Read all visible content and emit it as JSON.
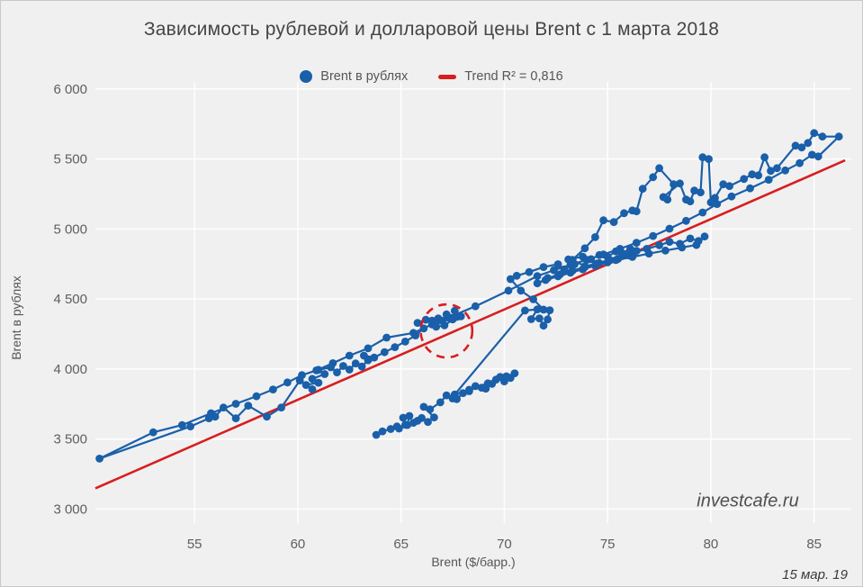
{
  "colors": {
    "series": "#1a5fa9",
    "trend": "#d81e1e",
    "annotation": "#d81e1e",
    "plot_bg": "#f0f0f1",
    "grid": "#ffffff",
    "tick_text": "#5e5e5e",
    "title_text": "#454545"
  },
  "watermark": "investcafe.ru",
  "date_label": "15 мар. 19",
  "chart_data": {
    "type": "scatter",
    "title": "Зависимость рублевой и долларовой цены Brent с 1 марта 2018",
    "xlabel": "Brent ($/барр.)",
    "ylabel": "Brent в рублях",
    "legend_position": "top-center",
    "grid": true,
    "xlim": [
      50.2,
      86.8
    ],
    "ylim": [
      2900,
      6050
    ],
    "x_ticks": [
      {
        "v": 55,
        "label": "55"
      },
      {
        "v": 60,
        "label": "60"
      },
      {
        "v": 65,
        "label": "65"
      },
      {
        "v": 70,
        "label": "70"
      },
      {
        "v": 75,
        "label": "75"
      },
      {
        "v": 80,
        "label": "80"
      },
      {
        "v": 85,
        "label": "85"
      }
    ],
    "y_ticks": [
      {
        "v": 3000,
        "label": "3 000"
      },
      {
        "v": 3500,
        "label": "3 500"
      },
      {
        "v": 4000,
        "label": "4 000"
      },
      {
        "v": 4500,
        "label": "4 500"
      },
      {
        "v": 5000,
        "label": "5 000"
      },
      {
        "v": 5500,
        "label": "5 500"
      },
      {
        "v": 6000,
        "label": "6 000"
      }
    ],
    "series": [
      {
        "name": "Brent в рублях",
        "connected": true,
        "points": [
          [
            63.8,
            3530
          ],
          [
            64.1,
            3555
          ],
          [
            64.5,
            3572
          ],
          [
            64.8,
            3590
          ],
          [
            64.9,
            3575
          ],
          [
            65.2,
            3602
          ],
          [
            65.1,
            3652
          ],
          [
            65.4,
            3665
          ],
          [
            65.3,
            3600
          ],
          [
            65.6,
            3616
          ],
          [
            65.8,
            3630
          ],
          [
            66.0,
            3650
          ],
          [
            66.3,
            3622
          ],
          [
            66.6,
            3655
          ],
          [
            66.1,
            3730
          ],
          [
            66.4,
            3712
          ],
          [
            66.9,
            3762
          ],
          [
            67.2,
            3812
          ],
          [
            67.5,
            3790
          ],
          [
            67.7,
            3785
          ],
          [
            68.0,
            3828
          ],
          [
            68.3,
            3842
          ],
          [
            68.6,
            3878
          ],
          [
            68.9,
            3866
          ],
          [
            69.1,
            3860
          ],
          [
            69.4,
            3894
          ],
          [
            69.6,
            3924
          ],
          [
            69.8,
            3944
          ],
          [
            70.0,
            3912
          ],
          [
            70.3,
            3936
          ],
          [
            70.5,
            3970
          ],
          [
            70.1,
            3948
          ],
          [
            69.2,
            3898
          ],
          [
            68.3,
            3852
          ],
          [
            67.6,
            3818
          ],
          [
            71.0,
            4418
          ],
          [
            71.6,
            4426
          ],
          [
            71.3,
            4356
          ],
          [
            71.7,
            4362
          ],
          [
            71.9,
            4310
          ],
          [
            72.1,
            4354
          ],
          [
            72.2,
            4420
          ],
          [
            71.9,
            4424
          ],
          [
            71.4,
            4498
          ],
          [
            70.8,
            4560
          ],
          [
            70.3,
            4642
          ],
          [
            70.6,
            4666
          ],
          [
            71.2,
            4692
          ],
          [
            71.9,
            4728
          ],
          [
            72.6,
            4748
          ],
          [
            72.9,
            4712
          ],
          [
            73.4,
            4748
          ],
          [
            73.1,
            4782
          ],
          [
            73.8,
            4802
          ],
          [
            74.2,
            4784
          ],
          [
            74.6,
            4814
          ],
          [
            75.0,
            4800
          ],
          [
            75.4,
            4840
          ],
          [
            75.7,
            4828
          ],
          [
            76.1,
            4858
          ],
          [
            76.4,
            4844
          ],
          [
            76.0,
            4812
          ],
          [
            75.5,
            4786
          ],
          [
            75.0,
            4762
          ],
          [
            74.4,
            4738
          ],
          [
            73.8,
            4712
          ],
          [
            73.2,
            4688
          ],
          [
            72.6,
            4662
          ],
          [
            72.0,
            4636
          ],
          [
            71.6,
            4612
          ],
          [
            72.1,
            4650
          ],
          [
            72.7,
            4676
          ],
          [
            73.3,
            4702
          ],
          [
            73.9,
            4728
          ],
          [
            74.5,
            4754
          ],
          [
            75.1,
            4780
          ],
          [
            75.7,
            4806
          ],
          [
            76.3,
            4832
          ],
          [
            76.9,
            4858
          ],
          [
            77.5,
            4884
          ],
          [
            78.0,
            4908
          ],
          [
            78.5,
            4894
          ],
          [
            79.0,
            4932
          ],
          [
            79.4,
            4914
          ],
          [
            79.7,
            4946
          ],
          [
            79.3,
            4886
          ],
          [
            78.6,
            4868
          ],
          [
            77.8,
            4846
          ],
          [
            77.0,
            4824
          ],
          [
            76.2,
            4800
          ],
          [
            75.4,
            4778
          ],
          [
            74.6,
            4756
          ],
          [
            73.9,
            4734
          ],
          [
            73.3,
            4780
          ],
          [
            73.9,
            4862
          ],
          [
            74.4,
            4942
          ],
          [
            74.8,
            5062
          ],
          [
            75.3,
            5050
          ],
          [
            75.8,
            5113
          ],
          [
            76.2,
            5132
          ],
          [
            76.4,
            5126
          ],
          [
            76.7,
            5287
          ],
          [
            77.2,
            5370
          ],
          [
            77.5,
            5434
          ],
          [
            78.2,
            5319
          ],
          [
            77.9,
            5210
          ],
          [
            77.7,
            5228
          ],
          [
            78.5,
            5325
          ],
          [
            78.8,
            5210
          ],
          [
            79.0,
            5197
          ],
          [
            79.2,
            5274
          ],
          [
            79.5,
            5261
          ],
          [
            79.6,
            5512
          ],
          [
            79.9,
            5499
          ],
          [
            80.0,
            5190
          ],
          [
            80.2,
            5222
          ],
          [
            80.6,
            5319
          ],
          [
            80.9,
            5306
          ],
          [
            81.6,
            5357
          ],
          [
            82.0,
            5390
          ],
          [
            82.3,
            5383
          ],
          [
            82.6,
            5512
          ],
          [
            82.9,
            5415
          ],
          [
            83.2,
            5434
          ],
          [
            84.1,
            5595
          ],
          [
            84.4,
            5582
          ],
          [
            84.7,
            5614
          ],
          [
            85.0,
            5685
          ],
          [
            85.4,
            5660
          ],
          [
            86.2,
            5660
          ],
          [
            85.2,
            5518
          ],
          [
            84.9,
            5530
          ],
          [
            84.3,
            5470
          ],
          [
            83.6,
            5418
          ],
          [
            82.8,
            5352
          ],
          [
            81.9,
            5290
          ],
          [
            81.0,
            5232
          ],
          [
            80.3,
            5178
          ],
          [
            79.6,
            5118
          ],
          [
            78.8,
            5058
          ],
          [
            78.0,
            5002
          ],
          [
            77.2,
            4950
          ],
          [
            76.4,
            4902
          ],
          [
            75.6,
            4858
          ],
          [
            74.8,
            4818
          ],
          [
            74.0,
            4780
          ],
          [
            73.2,
            4744
          ],
          [
            72.4,
            4706
          ],
          [
            71.6,
            4664
          ],
          [
            70.2,
            4560
          ],
          [
            68.6,
            4448
          ],
          [
            66.5,
            4318
          ],
          [
            65.6,
            4258
          ],
          [
            64.3,
            4224
          ],
          [
            63.4,
            4148
          ],
          [
            62.5,
            4096
          ],
          [
            61.7,
            4042
          ],
          [
            60.9,
            3990
          ],
          [
            60.2,
            3956
          ],
          [
            59.5,
            3904
          ],
          [
            58.8,
            3854
          ],
          [
            58.0,
            3806
          ],
          [
            57.0,
            3752
          ],
          [
            55.8,
            3684
          ],
          [
            54.4,
            3600
          ],
          [
            53.0,
            3548
          ],
          [
            50.4,
            3360
          ],
          [
            54.8,
            3590
          ],
          [
            55.7,
            3648
          ],
          [
            56.0,
            3660
          ],
          [
            56.4,
            3725
          ],
          [
            57.0,
            3648
          ],
          [
            57.6,
            3738
          ],
          [
            58.5,
            3660
          ],
          [
            59.2,
            3725
          ],
          [
            60.1,
            3918
          ],
          [
            60.7,
            3855
          ],
          [
            60.4,
            3886
          ],
          [
            61.0,
            3902
          ],
          [
            60.7,
            3930
          ],
          [
            61.3,
            3964
          ],
          [
            61.0,
            3994
          ],
          [
            61.6,
            4012
          ],
          [
            61.9,
            3976
          ],
          [
            62.2,
            4022
          ],
          [
            62.5,
            3996
          ],
          [
            62.8,
            4040
          ],
          [
            63.1,
            4018
          ],
          [
            63.4,
            4062
          ],
          [
            63.2,
            4096
          ],
          [
            63.7,
            4082
          ],
          [
            64.2,
            4120
          ],
          [
            64.7,
            4156
          ],
          [
            65.2,
            4196
          ],
          [
            65.7,
            4240
          ],
          [
            66.1,
            4290
          ],
          [
            65.8,
            4330
          ],
          [
            66.2,
            4352
          ],
          [
            66.5,
            4346
          ],
          [
            66.8,
            4362
          ],
          [
            67.0,
            4344
          ],
          [
            67.3,
            4366
          ],
          [
            67.5,
            4354
          ],
          [
            67.7,
            4372
          ],
          [
            67.1,
            4312
          ],
          [
            66.7,
            4302
          ],
          [
            67.2,
            4390
          ],
          [
            67.9,
            4376
          ],
          [
            67.6,
            4416
          ]
        ]
      }
    ],
    "trend": {
      "name": "Trend R² = 0,816",
      "r2": 0.816,
      "x1": 50.2,
      "y1": 3148,
      "x2": 86.5,
      "y2": 5490
    },
    "annotation_circle": {
      "x": 67.2,
      "y": 4272,
      "rx": 1.25,
      "ry": 190
    }
  }
}
